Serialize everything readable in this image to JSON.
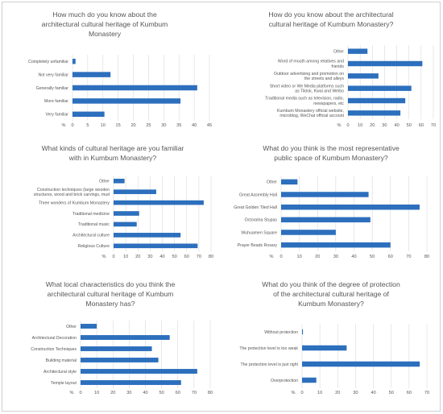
{
  "colors": {
    "bar": "#2c6fbd",
    "grid": "#d9d9d9",
    "text": "#555555"
  },
  "chart_data": [
    {
      "type": "bar",
      "orientation": "horizontal",
      "title_lines": [
        "How much do you know about the",
        "architectural cultural heritage of Kumbum",
        "Monastery"
      ],
      "categories": [
        "Completely unfamiliar",
        "Not very familiar",
        "Generally familiar",
        "More familiar",
        "Very familiar"
      ],
      "values": [
        1,
        12.5,
        41,
        35.5,
        10.5
      ],
      "xlim": [
        0,
        45
      ],
      "ticks": [
        0,
        5,
        10,
        15,
        20,
        25,
        30,
        35,
        40,
        45
      ],
      "axis_unit": "%",
      "grid": true
    },
    {
      "type": "bar",
      "orientation": "horizontal",
      "title_lines": [
        "How do you know about the architectural",
        "cultural heritage of Kumbum Monastery?"
      ],
      "categories": [
        [
          "Other"
        ],
        [
          "Word of mouth among relatives and",
          "friends"
        ],
        [
          "Outdoor advertising and promotion on",
          "the streets and alleys"
        ],
        [
          "Short video or We Media platforms such",
          "as Tiktok, Kwai and Weibo"
        ],
        [
          "Traditional media such as television, radio,",
          "newspapers, etc"
        ],
        [
          "Kumbum Monastery official website,",
          "microblog, WeChat official account"
        ]
      ],
      "values": [
        16,
        61,
        25,
        52,
        47,
        43
      ],
      "xlim": [
        0,
        70
      ],
      "ticks": [
        0,
        10,
        20,
        30,
        40,
        50,
        60,
        70
      ],
      "axis_unit": "%",
      "grid": true
    },
    {
      "type": "bar",
      "orientation": "horizontal",
      "title_lines": [
        "What kinds of cultural heritage are you familiar",
        "with in Kumbum Monastery?"
      ],
      "categories": [
        [
          "Other"
        ],
        [
          "Construction techniques (large wooden",
          "structures, wood and brick carvings, mud"
        ],
        [
          "Three wonders of Kumbum Monastery"
        ],
        [
          "Traditional medicine"
        ],
        [
          "Traditional music"
        ],
        [
          "Architectural culture"
        ],
        [
          "Religious Culture"
        ]
      ],
      "values": [
        9,
        35,
        74,
        21,
        19,
        55,
        69
      ],
      "xlim": [
        0,
        80
      ],
      "ticks": [
        0,
        10,
        20,
        30,
        40,
        50,
        60,
        70,
        80
      ],
      "axis_unit": "%",
      "grid": true
    },
    {
      "type": "bar",
      "orientation": "horizontal",
      "title_lines": [
        "What do you think is the most representative",
        "public space of Kumbum Monastery?"
      ],
      "categories": [
        "Other",
        "Great Assembly Hall",
        "Great Golden Tiled Hall",
        "Octoratna Stupas",
        "Wuhuamen Square",
        "Prayer Beads Rosary"
      ],
      "values": [
        9,
        48,
        76,
        49,
        30,
        60
      ],
      "xlim": [
        0,
        80
      ],
      "ticks": [
        0,
        10,
        20,
        30,
        40,
        50,
        60,
        70,
        80
      ],
      "axis_unit": "%",
      "grid": true
    },
    {
      "type": "bar",
      "orientation": "horizontal",
      "title_lines": [
        "What local characteristics do you think the",
        "architectural cultural heritage of Kumbum",
        "Monastery has?"
      ],
      "categories": [
        "Other",
        "Architectural Decoration",
        "Construction Techniques",
        "Building material",
        "Architectural style",
        "Temple layout"
      ],
      "values": [
        10,
        55,
        44,
        48,
        72,
        62
      ],
      "xlim": [
        0,
        80
      ],
      "ticks": [
        0,
        10,
        20,
        30,
        40,
        50,
        60,
        70,
        80
      ],
      "axis_unit": "%",
      "grid": true
    },
    {
      "type": "bar",
      "orientation": "horizontal",
      "title_lines": [
        "What do you think of the degree of protection",
        "of the architectural cultural heritage of",
        "Kumbum Monastery?"
      ],
      "categories": [
        "Without protection",
        "The protection level is too weak",
        "The protection level is just right",
        "Overprotection"
      ],
      "values": [
        0.5,
        25,
        66,
        8
      ],
      "xlim": [
        0,
        70
      ],
      "ticks": [
        0,
        10,
        20,
        30,
        40,
        50,
        60,
        70
      ],
      "axis_unit": "%",
      "grid": true
    }
  ]
}
